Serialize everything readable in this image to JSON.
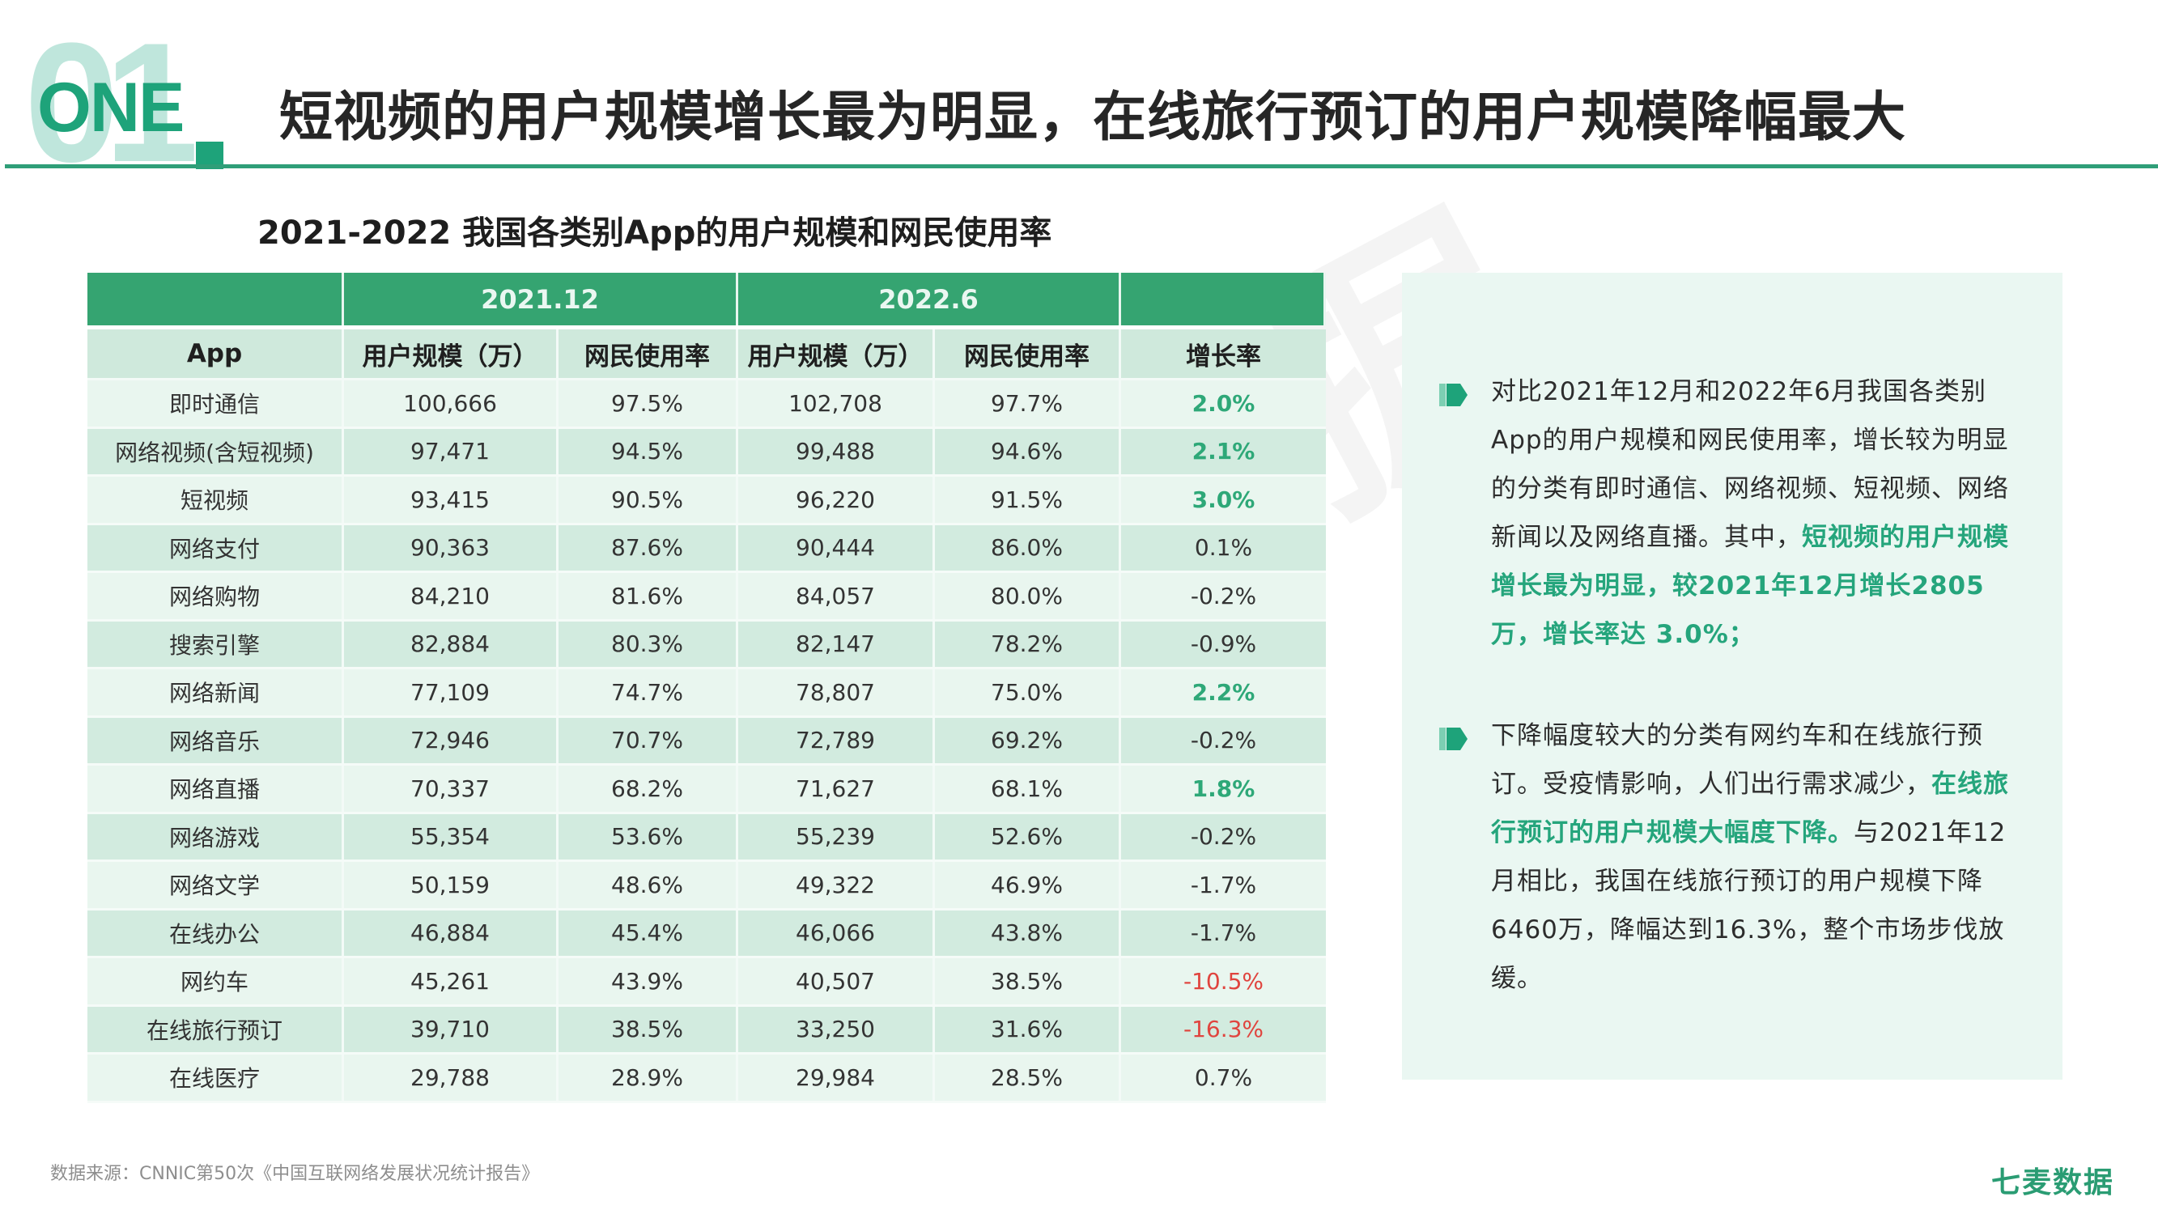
{
  "header": {
    "badge_number": "01",
    "badge_word": "ONE",
    "title": "短视频的用户规模增长最为明显，在线旅行预订的用户规模降幅最大"
  },
  "table": {
    "title": "2021-2022 我国各类别App的用户规模和网民使用率",
    "group_headers": [
      "",
      "2021.12",
      "2022.6",
      ""
    ],
    "columns": [
      "App",
      "用户规模（万）",
      "网民使用率",
      "用户规模（万）",
      "网民使用率",
      "增长率"
    ],
    "rows": [
      {
        "app": "即时通信",
        "users_2021": "100,666",
        "rate_2021": "97.5%",
        "users_2022": "102,708",
        "rate_2022": "97.7%",
        "growth": "2.0%",
        "trend": "pos"
      },
      {
        "app": "网络视频(含短视频)",
        "users_2021": "97,471",
        "rate_2021": "94.5%",
        "users_2022": "99,488",
        "rate_2022": "94.6%",
        "growth": "2.1%",
        "trend": "pos"
      },
      {
        "app": "短视频",
        "users_2021": "93,415",
        "rate_2021": "90.5%",
        "users_2022": "96,220",
        "rate_2022": "91.5%",
        "growth": "3.0%",
        "trend": "pos"
      },
      {
        "app": "网络支付",
        "users_2021": "90,363",
        "rate_2021": "87.6%",
        "users_2022": "90,444",
        "rate_2022": "86.0%",
        "growth": "0.1%",
        "trend": "neutral"
      },
      {
        "app": "网络购物",
        "users_2021": "84,210",
        "rate_2021": "81.6%",
        "users_2022": "84,057",
        "rate_2022": "80.0%",
        "growth": "-0.2%",
        "trend": "neutral"
      },
      {
        "app": "搜索引擎",
        "users_2021": "82,884",
        "rate_2021": "80.3%",
        "users_2022": "82,147",
        "rate_2022": "78.2%",
        "growth": "-0.9%",
        "trend": "neutral"
      },
      {
        "app": "网络新闻",
        "users_2021": "77,109",
        "rate_2021": "74.7%",
        "users_2022": "78,807",
        "rate_2022": "75.0%",
        "growth": "2.2%",
        "trend": "pos"
      },
      {
        "app": "网络音乐",
        "users_2021": "72,946",
        "rate_2021": "70.7%",
        "users_2022": "72,789",
        "rate_2022": "69.2%",
        "growth": "-0.2%",
        "trend": "neutral"
      },
      {
        "app": "网络直播",
        "users_2021": "70,337",
        "rate_2021": "68.2%",
        "users_2022": "71,627",
        "rate_2022": "68.1%",
        "growth": "1.8%",
        "trend": "pos"
      },
      {
        "app": "网络游戏",
        "users_2021": "55,354",
        "rate_2021": "53.6%",
        "users_2022": "55,239",
        "rate_2022": "52.6%",
        "growth": "-0.2%",
        "trend": "neutral"
      },
      {
        "app": "网络文学",
        "users_2021": "50,159",
        "rate_2021": "48.6%",
        "users_2022": "49,322",
        "rate_2022": "46.9%",
        "growth": "-1.7%",
        "trend": "neutral"
      },
      {
        "app": "在线办公",
        "users_2021": "46,884",
        "rate_2021": "45.4%",
        "users_2022": "46,066",
        "rate_2022": "43.8%",
        "growth": "-1.7%",
        "trend": "neutral"
      },
      {
        "app": "网约车",
        "users_2021": "45,261",
        "rate_2021": "43.9%",
        "users_2022": "40,507",
        "rate_2022": "38.5%",
        "growth": "-10.5%",
        "trend": "neg"
      },
      {
        "app": "在线旅行预订",
        "users_2021": "39,710",
        "rate_2021": "38.5%",
        "users_2022": "33,250",
        "rate_2022": "31.6%",
        "growth": "-16.3%",
        "trend": "neg"
      },
      {
        "app": "在线医疗",
        "users_2021": "29,788",
        "rate_2021": "28.9%",
        "users_2022": "29,984",
        "rate_2022": "28.5%",
        "growth": "0.7%",
        "trend": "neutral"
      }
    ]
  },
  "panel": {
    "bullet_icon": "arrow-tag-icon",
    "paragraphs": [
      {
        "normal": "对比2021年12月和2022年6月我国各类别App的用户规模和网民使用率，增长较为明显的分类有即时通信、网络视频、短视频、网络新闻以及网络直播。其中，",
        "highlight": "短视频的用户规模增长最为明显，较2021年12月增长2805万，增长率达 3.0%；",
        "after": ""
      },
      {
        "normal": "下降幅度较大的分类有网约车和在线旅行预订。受疫情影响，人们出行需求减少，",
        "highlight": "在线旅行预订的用户规模大幅度下降。",
        "after": "与2021年12月相比，我国在线旅行预订的用户规模下降6460万，降幅达到16.3%，整个市场步伐放缓。"
      }
    ]
  },
  "watermark": "七麦数据",
  "footer": {
    "source": "数据来源：CNNIC第50次《中国互联网络发展状况统计报告》",
    "brand": "七麦数据"
  },
  "colors": {
    "accent": "#1ea37a",
    "table_header": "#35a471",
    "row_light": "#e9f6ef",
    "row_dark": "#d2ebdf",
    "positive": "#2ea878",
    "negative": "#e0443e",
    "panel_bg": "#eaf7f2"
  },
  "chart_data": {
    "type": "table",
    "title": "2021-2022 我国各类别App的用户规模和网民使用率",
    "columns": [
      "App",
      "2021.12 用户规模（万）",
      "2021.12 网民使用率",
      "2022.6 用户规模（万）",
      "2022.6 网民使用率",
      "增长率"
    ],
    "rows": [
      [
        "即时通信",
        100666,
        97.5,
        102708,
        97.7,
        2.0
      ],
      [
        "网络视频(含短视频)",
        97471,
        94.5,
        99488,
        94.6,
        2.1
      ],
      [
        "短视频",
        93415,
        90.5,
        96220,
        91.5,
        3.0
      ],
      [
        "网络支付",
        90363,
        87.6,
        90444,
        86.0,
        0.1
      ],
      [
        "网络购物",
        84210,
        81.6,
        84057,
        80.0,
        -0.2
      ],
      [
        "搜索引擎",
        82884,
        80.3,
        82147,
        78.2,
        -0.9
      ],
      [
        "网络新闻",
        77109,
        74.7,
        78807,
        75.0,
        2.2
      ],
      [
        "网络音乐",
        72946,
        70.7,
        72789,
        69.2,
        -0.2
      ],
      [
        "网络直播",
        70337,
        68.2,
        71627,
        68.1,
        1.8
      ],
      [
        "网络游戏",
        55354,
        53.6,
        55239,
        52.6,
        -0.2
      ],
      [
        "网络文学",
        50159,
        48.6,
        49322,
        46.9,
        -1.7
      ],
      [
        "在线办公",
        46884,
        45.4,
        46066,
        43.8,
        -1.7
      ],
      [
        "网约车",
        45261,
        43.9,
        40507,
        38.5,
        -10.5
      ],
      [
        "在线旅行预订",
        39710,
        38.5,
        33250,
        31.6,
        -16.3
      ],
      [
        "在线医疗",
        29788,
        28.9,
        29984,
        28.5,
        0.7
      ]
    ]
  }
}
